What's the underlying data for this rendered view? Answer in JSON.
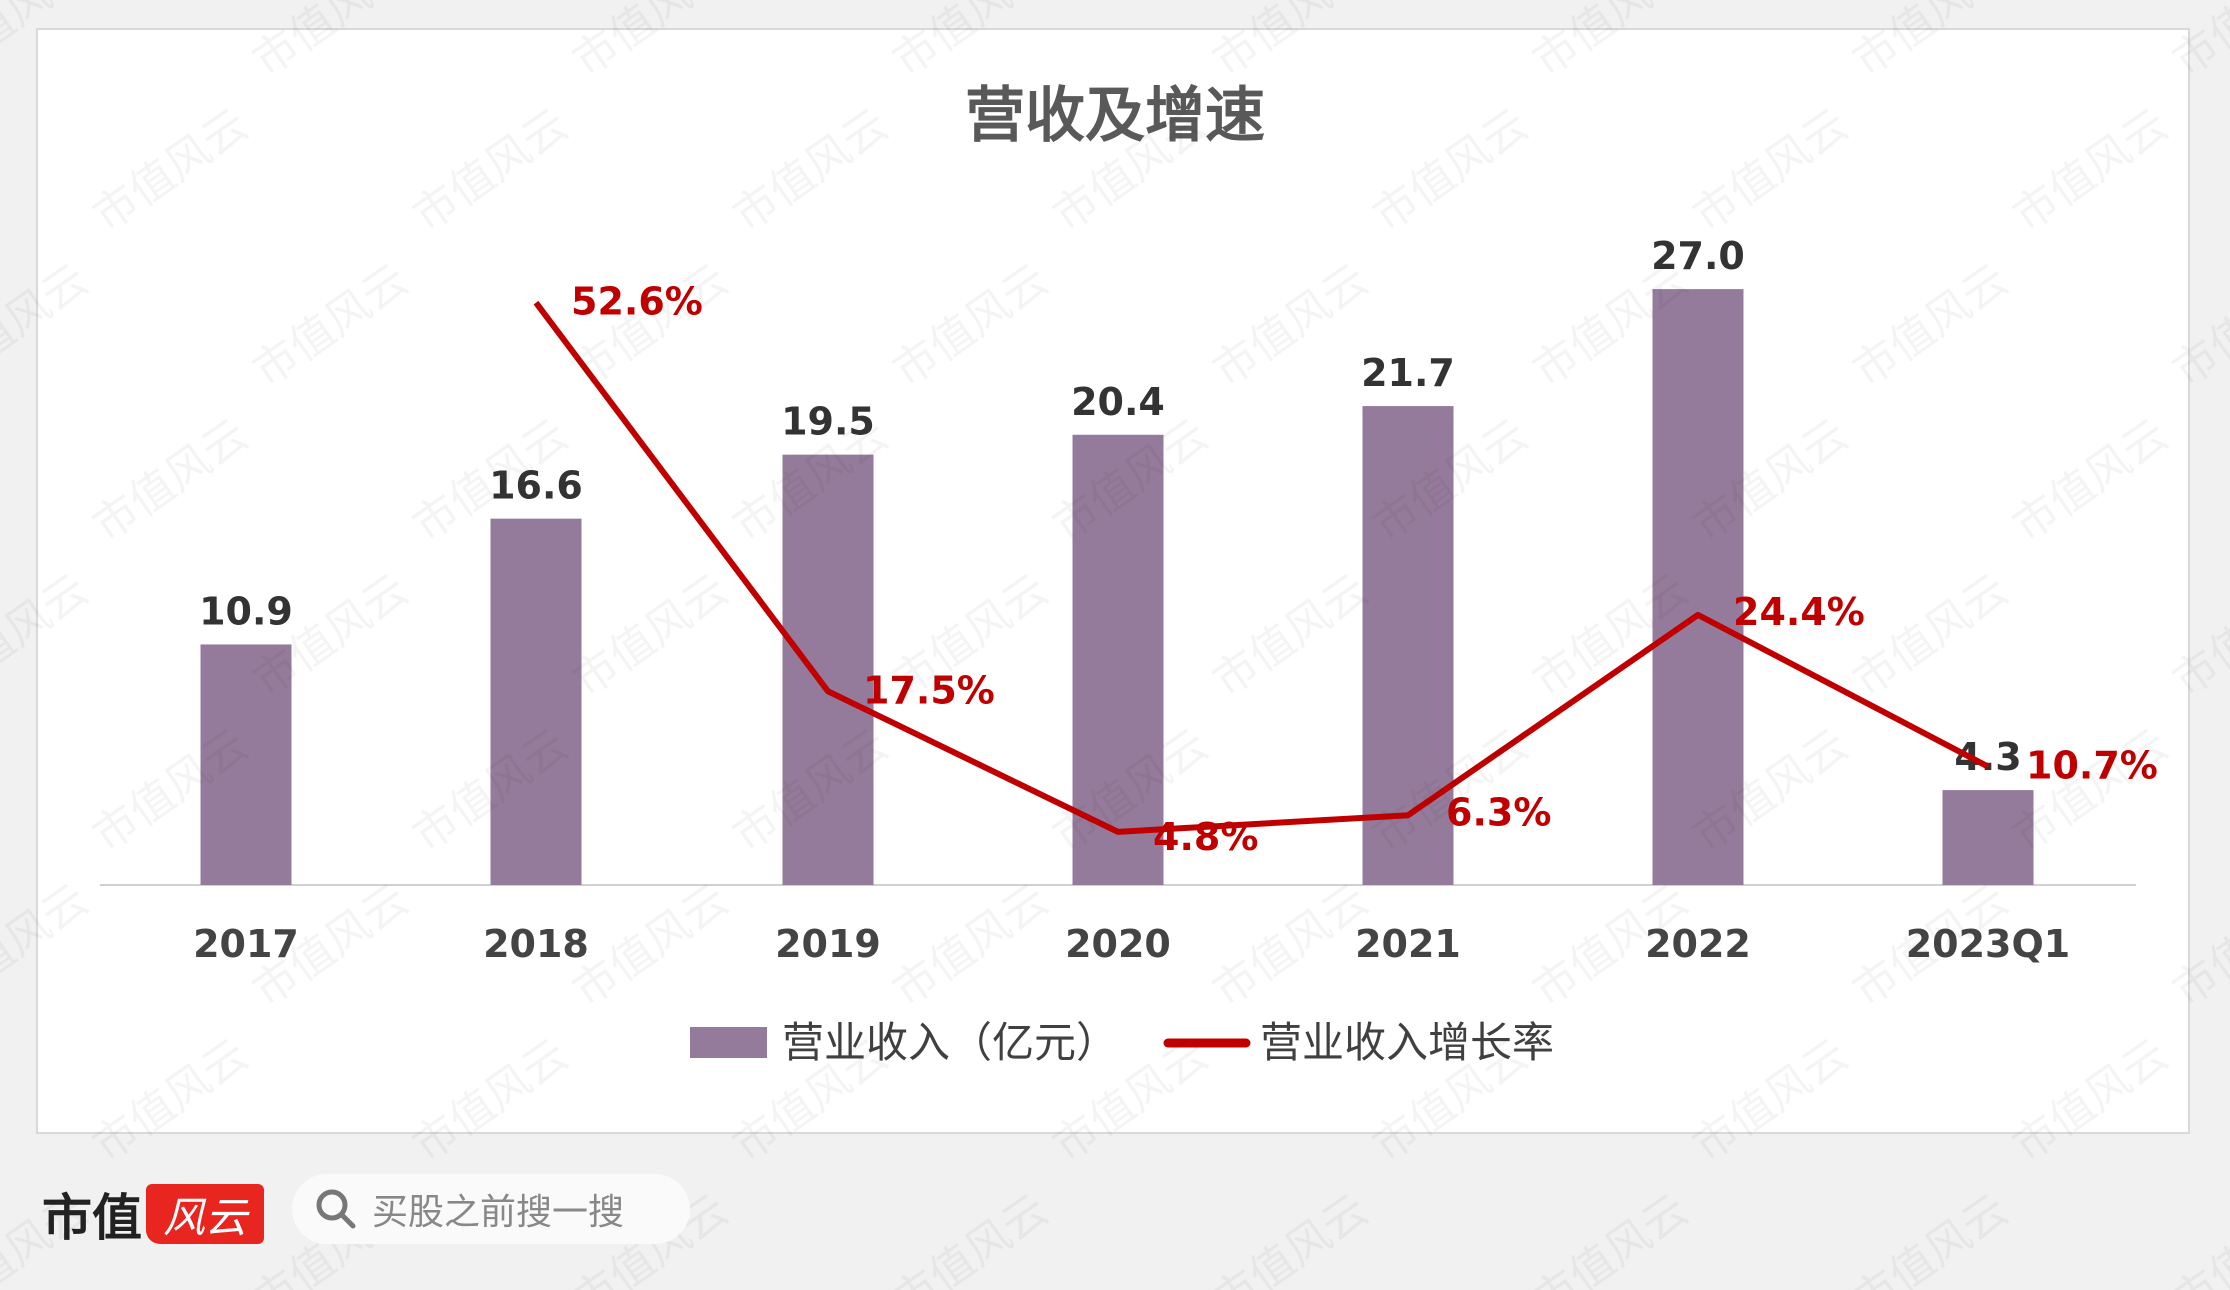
{
  "chart_data": {
    "type": "bar+line",
    "title": "营收及增速",
    "categories": [
      "2017",
      "2018",
      "2019",
      "2020",
      "2021",
      "2022",
      "2023Q1"
    ],
    "series": [
      {
        "name": "营业收入（亿元）",
        "type": "bar",
        "color": "#957b9b",
        "values": [
          10.9,
          16.6,
          19.5,
          20.4,
          21.7,
          27.0,
          4.3
        ],
        "labels": [
          "10.9",
          "16.6",
          "19.5",
          "20.4",
          "21.7",
          "27.0",
          "4.3"
        ]
      },
      {
        "name": "营业收入增长率",
        "type": "line",
        "color": "#c00000",
        "unit": "%",
        "values": [
          null,
          52.6,
          17.5,
          4.8,
          6.3,
          24.4,
          10.7
        ],
        "labels": [
          "",
          "52.6%",
          "17.5%",
          "4.8%",
          "6.3%",
          "24.4%",
          "10.7%"
        ]
      }
    ],
    "legend": "bottom",
    "grid": false
  },
  "watermark": "市值风云",
  "footer": {
    "logo_text": "市值",
    "logo_mark": "风云",
    "search_placeholder": "买股之前搜一搜"
  }
}
